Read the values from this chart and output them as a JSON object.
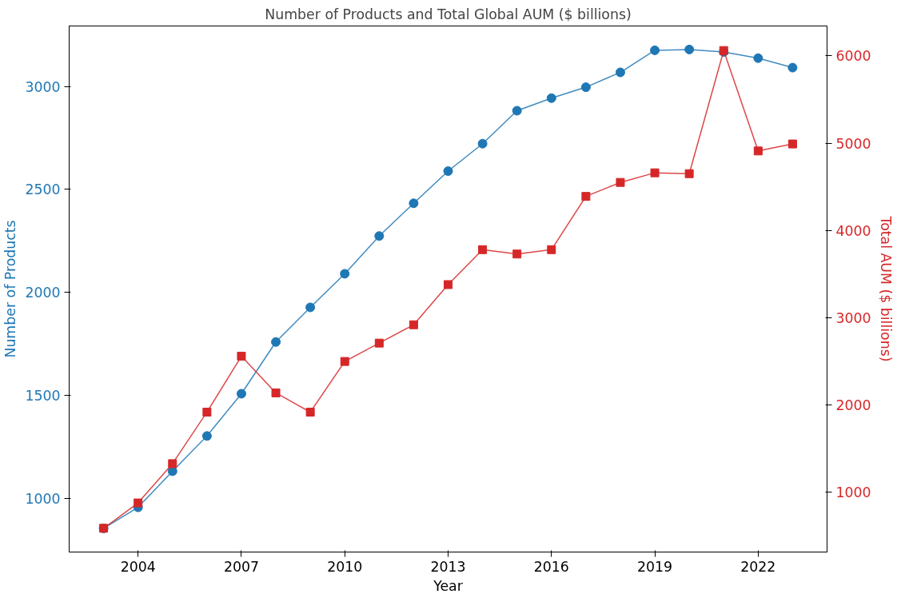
{
  "chart_data": {
    "type": "line",
    "title": "Number of Products and Total Global AUM ($ billions)",
    "xlabel": "Year",
    "ylabel": "Number of Products",
    "y2label": "Total AUM ($ billions)",
    "x": [
      2003,
      2004,
      2005,
      2006,
      2007,
      2008,
      2009,
      2010,
      2011,
      2012,
      2013,
      2014,
      2015,
      2016,
      2017,
      2018,
      2019,
      2020,
      2021,
      2022,
      2023
    ],
    "series": [
      {
        "color": "#1f77b4",
        "marker": "circle",
        "values": [
          856,
          958,
          1133,
          1304,
          1509,
          1760,
          1928,
          2091,
          2274,
          2433,
          2589,
          2722,
          2882,
          2943,
          2996,
          3068,
          3175,
          3179,
          3167,
          3137,
          3091
        ]
      },
      {
        "color": "#d62728",
        "marker": "square",
        "axis": "y2",
        "values": [
          590,
          880,
          1330,
          1920,
          2560,
          2140,
          1920,
          2500,
          2710,
          2920,
          3380,
          3780,
          3730,
          3780,
          4390,
          4550,
          4660,
          4650,
          6060,
          4910,
          4990
        ]
      }
    ],
    "xlim": [
      2002,
      2024
    ],
    "xticks": [
      2004,
      2007,
      2010,
      2013,
      2016,
      2019,
      2022
    ],
    "ylim": [
      741,
      3293
    ],
    "yticks": [
      1000,
      1500,
      2000,
      2500,
      3000
    ],
    "y2lim": [
      318,
      6341
    ],
    "y2ticks": [
      1000,
      2000,
      3000,
      4000,
      5000,
      6000
    ],
    "grid": false,
    "line_style": "solid"
  }
}
